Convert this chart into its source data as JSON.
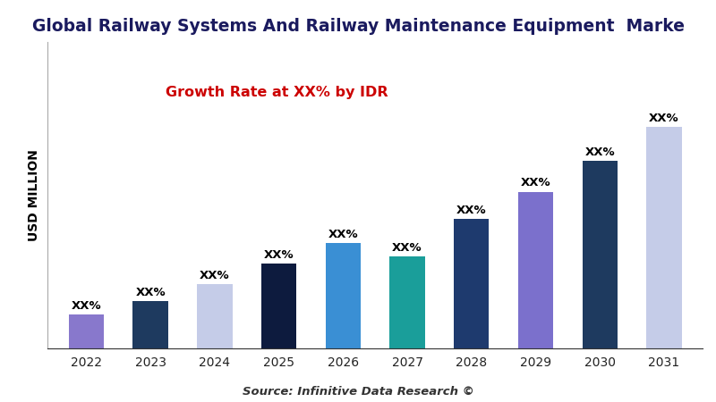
{
  "title": "Global Railway Systems And Railway Maintenance Equipment  Marke",
  "ylabel": "USD MILLION",
  "source": "Source: Infinitive Data Research ©",
  "growth_label": "Growth Rate at XX% by IDR",
  "categories": [
    "2022",
    "2023",
    "2024",
    "2025",
    "2026",
    "2027",
    "2028",
    "2029",
    "2030",
    "2031"
  ],
  "values": [
    10,
    14,
    19,
    25,
    31,
    27,
    38,
    46,
    55,
    65
  ],
  "bar_colors": [
    "#8878cc",
    "#1e3a5f",
    "#c5cce8",
    "#0d1b3e",
    "#3a8fd4",
    "#1a9e9a",
    "#1e3a6e",
    "#7b70cc",
    "#1e3a5f",
    "#c5cce8"
  ],
  "label": "XX%",
  "background_color": "#ffffff",
  "title_color": "#1a1a5e",
  "growth_color": "#cc0000",
  "title_fontsize": 13.5,
  "label_fontsize": 9.5,
  "ylabel_fontsize": 10,
  "source_fontsize": 9.5,
  "ylim_max": 90
}
